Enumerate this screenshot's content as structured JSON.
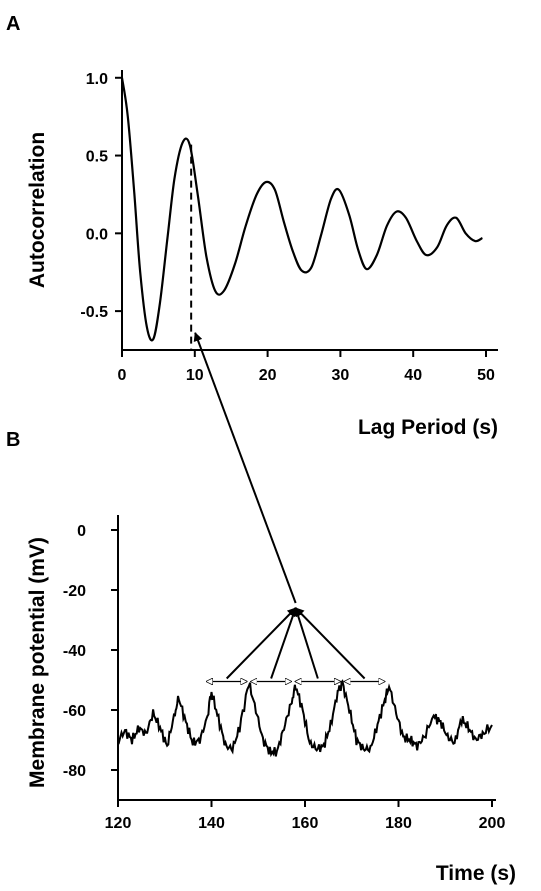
{
  "chart_data": [
    {
      "panel_label": "A",
      "type": "line",
      "xlabel": "Lag Period (s)",
      "ylabel": "Autocorrelation",
      "xlim": [
        0,
        50
      ],
      "ylim": [
        -0.75,
        1.05
      ],
      "x_ticks": [
        0,
        10,
        20,
        30,
        40,
        50
      ],
      "y_ticks": [
        1.0,
        0.5,
        0.0,
        -0.5
      ],
      "x_tick_labels": [
        "0",
        "10",
        "20",
        "30",
        "40",
        "50"
      ],
      "y_tick_labels": [
        "1.0",
        "0.5",
        "0.0",
        "-0.5"
      ],
      "series": [
        {
          "name": "autocorrelation",
          "x": [
            0,
            0.8,
            1.7,
            2.5,
            3.4,
            4.3,
            5.2,
            6.2,
            7.2,
            8.3,
            9.3,
            10.4,
            11.6,
            12.8,
            14.0,
            15.5,
            17.0,
            18.5,
            19.8,
            21.0,
            22.2,
            23.5,
            24.7,
            26.0,
            27.3,
            28.7,
            29.8,
            31.2,
            32.4,
            33.6,
            35.0,
            36.4,
            37.7,
            39.0,
            40.5,
            41.8,
            43.3,
            44.6,
            45.9,
            47.2,
            48.5,
            49.5
          ],
          "y": [
            1.0,
            0.75,
            0.25,
            -0.25,
            -0.6,
            -0.68,
            -0.45,
            -0.05,
            0.35,
            0.58,
            0.57,
            0.25,
            -0.15,
            -0.37,
            -0.37,
            -0.2,
            0.05,
            0.25,
            0.33,
            0.28,
            0.08,
            -0.12,
            -0.24,
            -0.22,
            -0.02,
            0.22,
            0.28,
            0.12,
            -0.1,
            -0.23,
            -0.14,
            0.05,
            0.14,
            0.1,
            -0.05,
            -0.14,
            -0.09,
            0.05,
            0.1,
            0.0,
            -0.05,
            -0.03
          ]
        }
      ],
      "marker_x": 9.5
    },
    {
      "panel_label": "B",
      "type": "line",
      "xlabel": "Time (s)",
      "ylabel": "Membrane potential (mV)",
      "xlim": [
        120,
        200
      ],
      "ylim": [
        -90,
        5
      ],
      "x_ticks": [
        120,
        140,
        160,
        180,
        200
      ],
      "y_ticks": [
        0,
        -20,
        -40,
        -60,
        -80
      ],
      "x_tick_labels": [
        "120",
        "140",
        "160",
        "180",
        "200"
      ],
      "y_tick_labels": [
        "0",
        "-20",
        "-40",
        "-60",
        "-80"
      ],
      "series": [
        {
          "name": "membrane potential",
          "x": [
            120,
            121.5,
            123,
            124.5,
            126,
            127.5,
            129,
            130.5,
            132,
            133,
            134.5,
            136,
            137.5,
            139,
            140,
            141.5,
            143,
            144.5,
            146,
            148,
            149.5,
            151,
            152.5,
            154,
            155.5,
            157,
            158,
            159.5,
            161,
            162.5,
            164,
            165.5,
            167,
            168,
            169.5,
            171,
            172.5,
            174,
            175.5,
            177,
            178,
            179.5,
            181,
            182.5,
            184,
            185.5,
            187.5,
            189,
            190.5,
            192,
            193.5,
            195,
            196.5,
            198,
            200
          ],
          "y": [
            -70,
            -67,
            -70,
            -66,
            -68,
            -61,
            -66,
            -72,
            -62,
            -56,
            -64,
            -71,
            -70,
            -63,
            -54,
            -63,
            -72,
            -73,
            -66,
            -51,
            -60,
            -70,
            -74,
            -74,
            -66,
            -58,
            -52,
            -60,
            -71,
            -73,
            -72,
            -65,
            -54,
            -51,
            -60,
            -70,
            -73,
            -73,
            -65,
            -57,
            -52,
            -61,
            -69,
            -70,
            -72,
            -69,
            -62,
            -64,
            -69,
            -71,
            -63,
            -66,
            -70,
            -68,
            -65
          ]
        }
      ],
      "peak_times": [
        138.5,
        148,
        157.5,
        168,
        177.5
      ],
      "interval_arrow_pairs": [
        [
          138.5,
          148
        ],
        [
          148,
          157.5
        ],
        [
          157.5,
          168
        ],
        [
          168,
          177.5
        ]
      ],
      "convergence_point": [
        158,
        -25
      ]
    }
  ]
}
